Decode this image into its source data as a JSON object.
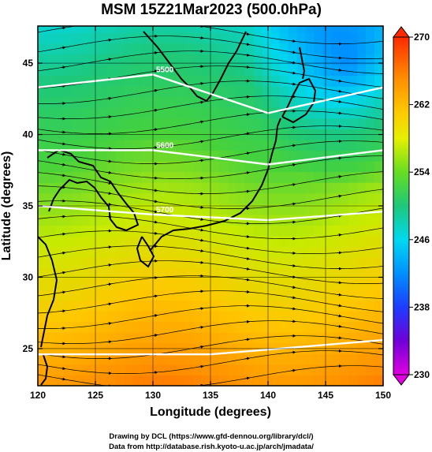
{
  "chart_data": {
    "type": "heatmap",
    "title": "MSM 15Z21Mar2023 (500.0hPa)",
    "xlabel": "Longitude (degrees)",
    "ylabel": "Latitude  (degrees)",
    "xlim": [
      120,
      150
    ],
    "ylim": [
      22.4,
      47.6
    ],
    "x_ticks": [
      "120",
      "125",
      "130",
      "135",
      "140",
      "145",
      "150"
    ],
    "y_ticks": [
      "25",
      "30",
      "35",
      "40",
      "45"
    ],
    "colorbar": {
      "min": 230,
      "max": 270,
      "ticks": [
        "270",
        "262",
        "254",
        "246",
        "238",
        "230"
      ],
      "extend": "both"
    },
    "height_contours": [
      {
        "label": "5500",
        "approx_lat_at_lon": [
          [
            120,
            43.3
          ],
          [
            130,
            44.2
          ],
          [
            140,
            41.5
          ],
          [
            150,
            43.3
          ]
        ]
      },
      {
        "label": "5600",
        "approx_lat_at_lon": [
          [
            120,
            38.9
          ],
          [
            130,
            38.9
          ],
          [
            140,
            37.9
          ],
          [
            150,
            38.9
          ]
        ]
      },
      {
        "label": "5700",
        "approx_lat_at_lon": [
          [
            120,
            35.0
          ],
          [
            130,
            34.4
          ],
          [
            140,
            34.0
          ],
          [
            150,
            34.6
          ]
        ]
      },
      {
        "label": "",
        "approx_lat_at_lon": [
          [
            120,
            24.6
          ],
          [
            135,
            24.6
          ],
          [
            150,
            25.6
          ]
        ]
      }
    ],
    "credits": [
      "Drawing by DCL (https://www.gfd-dennou.org/library/dcl/)",
      "Data from http://database.rish.kyoto-u.ac.jp/arch/jmadata/"
    ]
  }
}
